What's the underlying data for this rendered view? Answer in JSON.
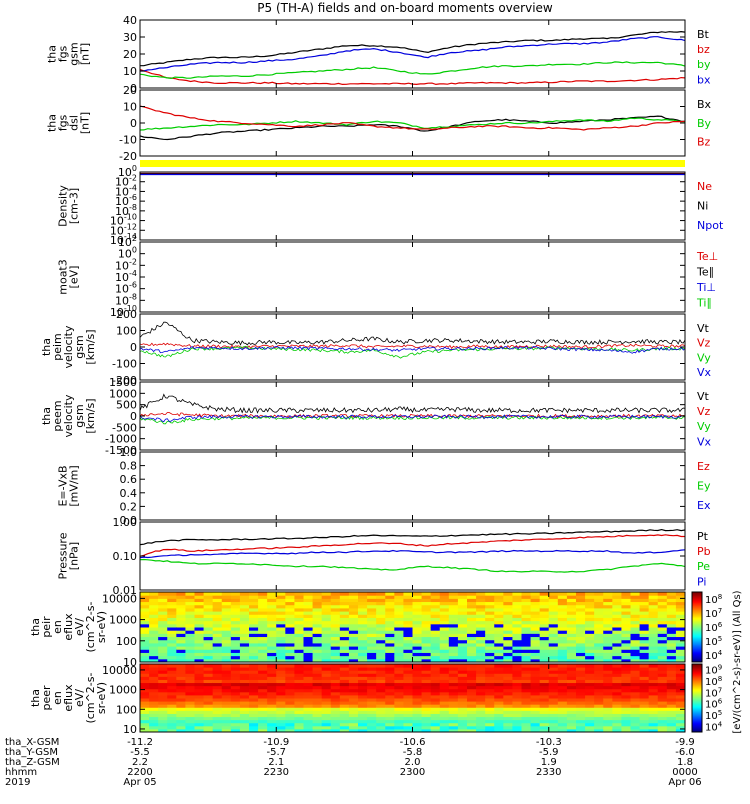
{
  "chart_data": {
    "type": "line",
    "title": "P5 (TH-A) fields and on-board moments overview",
    "time_axis": {
      "ticks": [
        "2200",
        "2230",
        "2300",
        "2330",
        "0000"
      ],
      "date_labels": [
        "Apr 05",
        "Apr 06"
      ],
      "year": "2019",
      "ephemeris": [
        {
          "name": "tha_X-GSM",
          "values": [
            "-11.2",
            "-10.9",
            "-10.6",
            "-10.3",
            "-9.9"
          ]
        },
        {
          "name": "tha_Y-GSM",
          "values": [
            "-5.5",
            "-5.7",
            "-5.8",
            "-5.9",
            "-6.0"
          ]
        },
        {
          "name": "tha_Z-GSM",
          "values": [
            "2.2",
            "2.1",
            "2.0",
            "1.9",
            "1.8"
          ]
        },
        {
          "name": "hhmm",
          "values": [
            "2200",
            "2230",
            "2300",
            "2330",
            "0000"
          ]
        }
      ]
    },
    "panels": [
      {
        "id": "fgs_gsm",
        "ylabel": [
          "tha",
          "fgs",
          "gsm",
          "[nT]"
        ],
        "ylim": [
          0,
          40
        ],
        "yticks": [
          "0",
          "10",
          "20",
          "30",
          "40"
        ],
        "series": [
          {
            "name": "Bt",
            "color": "#000000",
            "values": [
              13,
              15,
              17,
              18,
              18,
              19,
              21,
              23,
              25,
              25,
              24,
              21,
              24,
              26,
              27,
              28,
              28,
              29,
              29,
              31,
              33,
              33
            ]
          },
          {
            "name": "bz",
            "color": "#dd0000",
            "values": [
              11,
              6,
              4,
              3,
              3,
              3,
              2.5,
              2.5,
              2.5,
              2.5,
              2.5,
              2.5,
              2.5,
              3,
              3,
              3,
              3.5,
              4,
              4,
              4.5,
              5,
              6
            ]
          },
          {
            "name": "by",
            "color": "#00cc00",
            "values": [
              8,
              6,
              6,
              7,
              7,
              8,
              9,
              10,
              11,
              12,
              10,
              8,
              10,
              12,
              13,
              13,
              14,
              14,
              15,
              15,
              15,
              13
            ]
          },
          {
            "name": "bx",
            "color": "#0000dd",
            "values": [
              10,
              12,
              14,
              15,
              15,
              16,
              17,
              19,
              22,
              23,
              21,
              18,
              21,
              22,
              24,
              25,
              26,
              26,
              27,
              29,
              30,
              28
            ]
          }
        ]
      },
      {
        "id": "fgs_dsl",
        "ylabel": [
          "tha",
          "fgs",
          "dsl",
          "[nT]"
        ],
        "ylim": [
          -20,
          20
        ],
        "yticks": [
          "-20",
          "-10",
          "0",
          "10",
          "20"
        ],
        "series": [
          {
            "name": "Bx",
            "color": "#000000",
            "values": [
              -8,
              -10,
              -8,
              -6,
              -5,
              -4,
              -3,
              -2,
              -2,
              -1,
              -2,
              -5,
              -2,
              1,
              2,
              1,
              0,
              1,
              2,
              3,
              4,
              1
            ]
          },
          {
            "name": "By",
            "color": "#00cc00",
            "values": [
              -4,
              -3,
              -2,
              -1,
              -1,
              0,
              1,
              0,
              -1,
              1,
              0,
              -3,
              -2,
              -1,
              0,
              0,
              1,
              2,
              1,
              3,
              2,
              1
            ]
          },
          {
            "name": "Bz",
            "color": "#dd0000",
            "values": [
              10,
              6,
              3,
              1,
              0,
              -1,
              -2,
              -1,
              0,
              -2,
              -3,
              -4,
              -3,
              -2,
              -2,
              -3,
              -3,
              -4,
              -3,
              -2,
              0,
              1
            ]
          }
        ]
      },
      {
        "id": "density",
        "ylabel": [
          "Density",
          "[cm-3]"
        ],
        "scale": "log",
        "yticks": [
          "10^-14",
          "10^-12",
          "10^-10",
          "10^-8",
          "10^-6",
          "10^-4",
          "10^-2",
          "10^0"
        ],
        "series": [
          {
            "name": "Ne",
            "color": "#dd0000",
            "values": [
              0.5,
              0.5,
              0.5,
              0.5,
              0.5,
              0.5,
              0.5,
              0.5
            ]
          },
          {
            "name": "Ni",
            "color": "#000000",
            "values": [
              0.4,
              0.4,
              0.4,
              0.4,
              0.4,
              0.4,
              0.4,
              0.4
            ]
          },
          {
            "name": "Npot",
            "color": "#0000dd",
            "values": [
              0.3,
              0.3,
              0.3,
              0.3,
              0.3,
              0.3,
              0.3,
              0.3
            ]
          }
        ]
      },
      {
        "id": "temperature",
        "ylabel": [
          "moat3",
          "[eV]"
        ],
        "scale": "log",
        "yticks": [
          "10^-10",
          "10^-8",
          "10^-6",
          "10^-4",
          "10^-2",
          "10^0",
          "10^2"
        ],
        "series": [
          {
            "name": "Te⊥",
            "color": "#dd0000",
            "values": [
              500,
              500,
              500,
              500,
              500,
              500,
              500,
              500
            ]
          },
          {
            "name": "Te∥",
            "color": "#000000",
            "values": [
              600,
              600,
              600,
              600,
              600,
              600,
              600,
              600
            ]
          },
          {
            "name": "Ti⊥",
            "color": "#0000dd",
            "values": [
              800,
              800,
              800,
              800,
              800,
              800,
              800,
              800
            ]
          },
          {
            "name": "Ti∥",
            "color": "#00cc00",
            "values": [
              700,
              700,
              700,
              700,
              700,
              700,
              700,
              700
            ]
          }
        ]
      },
      {
        "id": "peim_velocity",
        "ylabel": [
          "tha",
          "peim",
          "velocity",
          "gsm",
          "[km/s]"
        ],
        "ylim": [
          -200,
          200
        ],
        "yticks": [
          "-200",
          "-100",
          "0",
          "100",
          "200"
        ],
        "series": [
          {
            "name": "Vt",
            "color": "#000000",
            "values": [
              60,
              150,
              40,
              30,
              25,
              30,
              25,
              30,
              40,
              50,
              30,
              40,
              40,
              35,
              30,
              30,
              35,
              30,
              30,
              35,
              30,
              30
            ]
          },
          {
            "name": "Vz",
            "color": "#dd0000",
            "values": [
              10,
              20,
              5,
              5,
              0,
              5,
              5,
              5,
              10,
              0,
              5,
              5,
              0,
              5,
              0,
              5,
              5,
              0,
              5,
              10,
              5,
              5
            ]
          },
          {
            "name": "Vy",
            "color": "#00cc00",
            "values": [
              -20,
              -60,
              -10,
              -10,
              -5,
              -10,
              -15,
              -20,
              -30,
              -20,
              -60,
              -30,
              -20,
              -15,
              -10,
              -10,
              -5,
              -10,
              -15,
              -20,
              -10,
              -10
            ]
          },
          {
            "name": "Vx",
            "color": "#0000dd",
            "values": [
              -10,
              -30,
              -5,
              -5,
              -10,
              -5,
              -5,
              -10,
              -10,
              -15,
              -20,
              -10,
              -10,
              -10,
              -5,
              -5,
              -10,
              -15,
              -20,
              -30,
              -10,
              -10
            ]
          }
        ]
      },
      {
        "id": "peem_velocity",
        "ylabel": [
          "tha",
          "peem",
          "velocity",
          "gsm",
          "[km/s]"
        ],
        "ylim": [
          -1500,
          1500
        ],
        "yticks": [
          "-1500",
          "-1000",
          "-500",
          "0",
          "500",
          "1000",
          "1500"
        ],
        "series": [
          {
            "name": "Vt",
            "color": "#000000",
            "values": [
              300,
              900,
              500,
              300,
              250,
              250,
              250,
              250,
              250,
              250,
              300,
              250,
              300,
              250,
              250,
              250,
              250,
              250,
              250,
              250,
              250,
              250
            ]
          },
          {
            "name": "Vz",
            "color": "#dd0000",
            "values": [
              50,
              100,
              50,
              0,
              0,
              0,
              0,
              0,
              0,
              0,
              0,
              0,
              0,
              0,
              0,
              0,
              0,
              0,
              0,
              0,
              0,
              0
            ]
          },
          {
            "name": "Vy",
            "color": "#00cc00",
            "values": [
              -100,
              -300,
              -150,
              -100,
              -100,
              -80,
              -80,
              -80,
              -80,
              -80,
              -80,
              -80,
              -80,
              -80,
              -80,
              -80,
              -80,
              -80,
              -80,
              -80,
              -80,
              -80
            ]
          },
          {
            "name": "Vx",
            "color": "#0000dd",
            "values": [
              -50,
              -200,
              -50,
              -30,
              -30,
              -30,
              -30,
              -30,
              -30,
              -30,
              -30,
              -30,
              -30,
              -30,
              -30,
              -30,
              -30,
              -30,
              -30,
              -30,
              -30,
              -30
            ]
          }
        ]
      },
      {
        "id": "e_field",
        "ylabel": [
          "E=-VxB",
          "[mV/m]"
        ],
        "ylim": [
          0,
          1
        ],
        "yticks": [
          "0.0",
          "0.2",
          "0.4",
          "0.6",
          "0.8",
          "1.0"
        ],
        "series": [
          {
            "name": "Ez",
            "color": "#dd0000",
            "values": []
          },
          {
            "name": "Ey",
            "color": "#00cc00",
            "values": []
          },
          {
            "name": "Ex",
            "color": "#0000dd",
            "values": []
          }
        ]
      },
      {
        "id": "pressure",
        "ylabel": [
          "Pressure",
          "[nPa]"
        ],
        "scale": "log",
        "ylim": [
          0.01,
          1
        ],
        "yticks": [
          "0.01",
          "0.10",
          "1.00"
        ],
        "series": [
          {
            "name": "Pt",
            "color": "#000000",
            "values": [
              0.22,
              0.28,
              0.3,
              0.3,
              0.31,
              0.32,
              0.33,
              0.35,
              0.38,
              0.4,
              0.39,
              0.38,
              0.4,
              0.42,
              0.44,
              0.45,
              0.47,
              0.5,
              0.52,
              0.55,
              0.58,
              0.58
            ]
          },
          {
            "name": "Pb",
            "color": "#dd0000",
            "values": [
              0.1,
              0.16,
              0.14,
              0.15,
              0.16,
              0.17,
              0.18,
              0.2,
              0.22,
              0.24,
              0.23,
              0.2,
              0.23,
              0.25,
              0.28,
              0.3,
              0.32,
              0.35,
              0.37,
              0.4,
              0.42,
              0.38
            ]
          },
          {
            "name": "Pe",
            "color": "#00cc00",
            "values": [
              0.08,
              0.07,
              0.06,
              0.06,
              0.06,
              0.055,
              0.05,
              0.05,
              0.045,
              0.04,
              0.04,
              0.05,
              0.045,
              0.04,
              0.035,
              0.035,
              0.035,
              0.035,
              0.04,
              0.05,
              0.06,
              0.05
            ]
          },
          {
            "name": "Pi",
            "color": "#0000dd",
            "values": [
              0.09,
              0.1,
              0.11,
              0.11,
              0.12,
              0.12,
              0.12,
              0.13,
              0.13,
              0.14,
              0.14,
              0.13,
              0.13,
              0.13,
              0.14,
              0.14,
              0.14,
              0.14,
              0.14,
              0.12,
              0.13,
              0.15
            ]
          }
        ]
      },
      {
        "id": "peir_en_eflux",
        "ylabel": [
          "tha",
          "peir",
          "en",
          "eflux",
          "eV/",
          "(cm^2-s-",
          "sr-eV)"
        ],
        "type": "heatmap",
        "ylim": [
          10,
          20000
        ],
        "yticks": [
          "10",
          "100",
          "1000",
          "10000"
        ]
      },
      {
        "id": "peer_en_eflux",
        "ylabel": [
          "tha",
          "peer",
          "en",
          "eflux",
          "eV/",
          "(cm^2-s-",
          "sr-eV)"
        ],
        "type": "heatmap",
        "ylim": [
          7,
          20000
        ],
        "yticks": [
          "10",
          "100",
          "1000",
          "10000"
        ]
      }
    ],
    "colorbar": {
      "label": "[eV/(cm^2-s)-sr-eV)] (All Qs)",
      "ticks": [
        "10^4",
        "10^5",
        "10^6",
        "10^7",
        "10^8"
      ],
      "ticks2": [
        "10^4",
        "10^5",
        "10^6",
        "10^7",
        "10^8",
        "10^9"
      ]
    }
  }
}
